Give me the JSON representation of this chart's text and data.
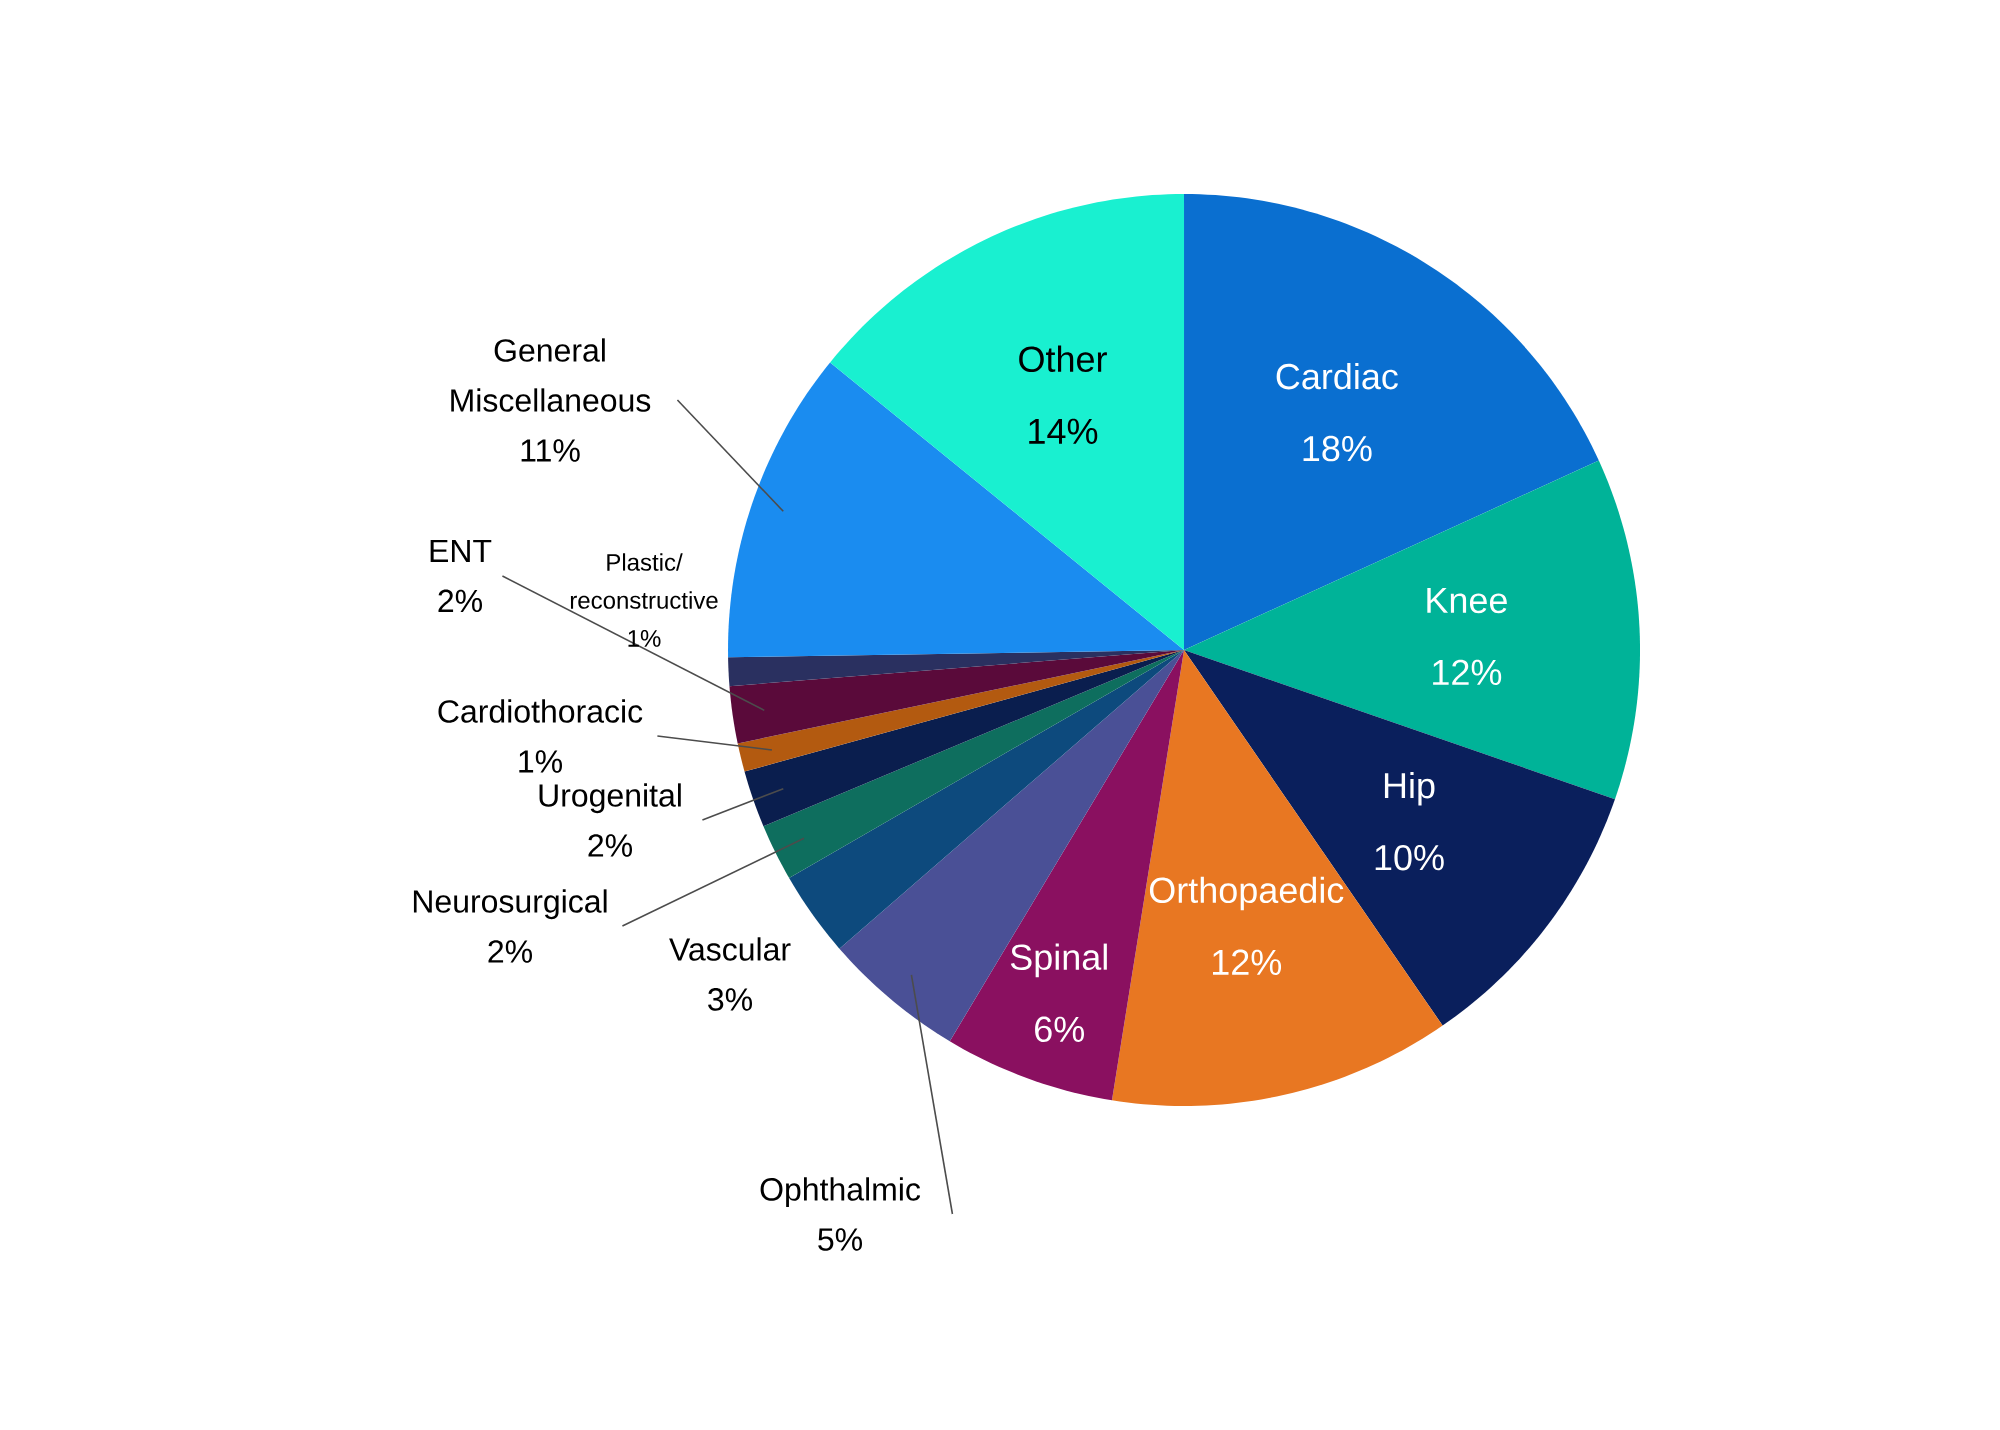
{
  "chart_data": {
    "type": "pie",
    "categories": [
      "Cardiac",
      "Knee",
      "Hip",
      "Orthopaedic",
      "Spinal",
      "Ophthalmic",
      "Vascular",
      "Neurosurgical",
      "Urogenital",
      "Cardiothoracic",
      "ENT",
      "Plastic/ reconstructive",
      "General Miscellaneous",
      "Other"
    ],
    "values": [
      18,
      12,
      10,
      12,
      6,
      5,
      3,
      2,
      2,
      1,
      2,
      1,
      11,
      14
    ],
    "value_labels": [
      "18%",
      "12%",
      "10%",
      "12%",
      "6%",
      "5%",
      "3%",
      "2%",
      "2%",
      "1%",
      "2%",
      "1%",
      "11%",
      "14%"
    ],
    "colors": [
      "#0a6fd0",
      "#00b398",
      "#0a1f5c",
      "#e87722",
      "#8a1060",
      "#4a5096",
      "#0d4a7d",
      "#0e6e5e",
      "#0a1e4e",
      "#b35a10",
      "#5a0a3a",
      "#2a3060",
      "#1a8cf0",
      "#19f0d0"
    ]
  }
}
